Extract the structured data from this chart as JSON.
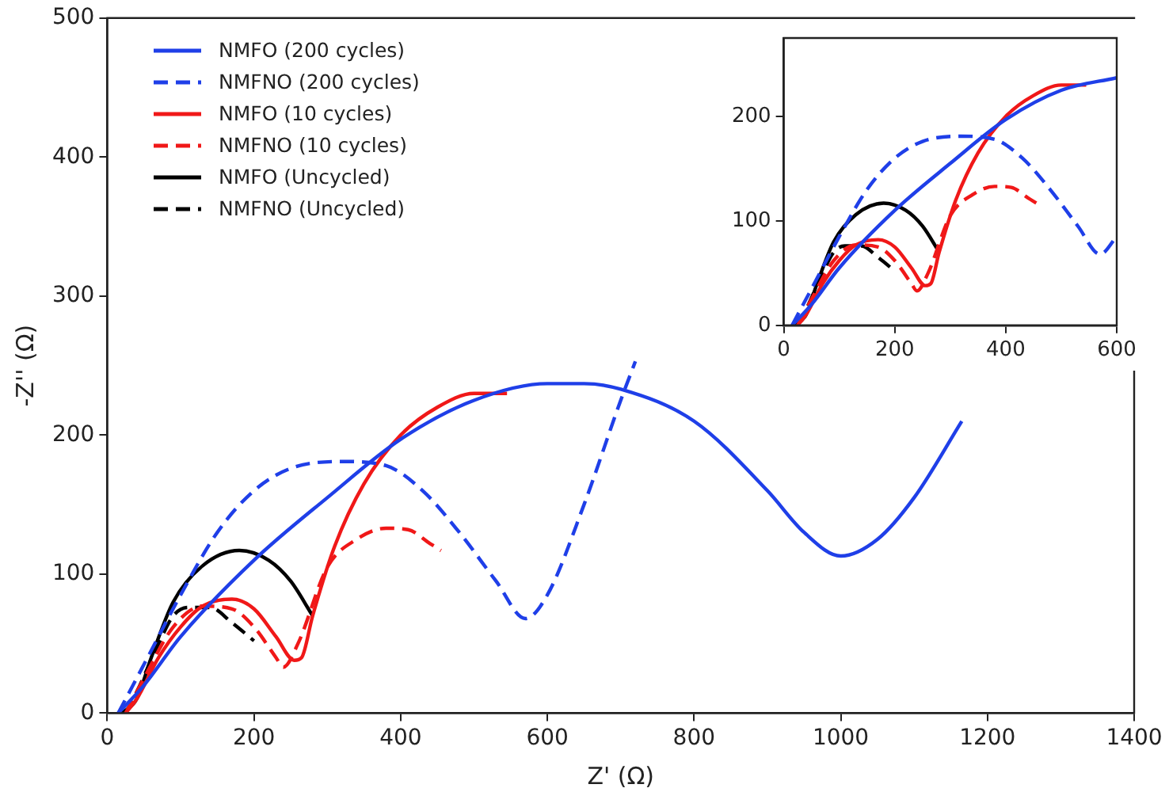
{
  "chart_data": [
    {
      "type": "line",
      "xlabel": "Z' (Ω)",
      "ylabel": "-Z'' (Ω)",
      "xlim": [
        0,
        1400
      ],
      "ylim": [
        0,
        500
      ],
      "xticks": [
        0,
        200,
        400,
        600,
        800,
        1000,
        1200,
        1400
      ],
      "yticks": [
        0,
        100,
        200,
        300,
        400,
        500
      ],
      "grid": false,
      "legend": "top left",
      "marker": "none",
      "series": [
        {
          "name": "NMFO (200 cycles)",
          "color": "#1f3fe8",
          "line_style": "solid",
          "x": [
            15,
            50,
            100,
            200,
            300,
            400,
            500,
            600,
            650,
            700,
            800,
            900,
            950,
            1000,
            1050,
            1100,
            1165
          ],
          "values": [
            0,
            20,
            55,
            110,
            155,
            197,
            225,
            237,
            237,
            233,
            210,
            160,
            130,
            113,
            125,
            155,
            210
          ]
        },
        {
          "name": "NMFNO (200 cycles)",
          "color": "#1f3fe8",
          "line_style": "dashed",
          "x": [
            15,
            50,
            100,
            150,
            200,
            250,
            320,
            380,
            430,
            480,
            530,
            570,
            600,
            650,
            700,
            720
          ],
          "values": [
            0,
            35,
            85,
            130,
            160,
            176,
            181,
            178,
            160,
            130,
            95,
            68,
            85,
            150,
            225,
            253
          ]
        },
        {
          "name": "NMFO (10 cycles)",
          "color": "#f01818",
          "line_style": "solid",
          "x": [
            25,
            40,
            70,
            100,
            130,
            170,
            200,
            230,
            255,
            265,
            280,
            310,
            350,
            400,
            450,
            500,
            545
          ],
          "values": [
            0,
            10,
            40,
            62,
            77,
            82,
            75,
            55,
            38,
            40,
            70,
            120,
            165,
            200,
            220,
            230,
            230
          ]
        },
        {
          "name": "NMFNO (10 cycles)",
          "color": "#f01818",
          "line_style": "dashed",
          "x": [
            25,
            50,
            90,
            130,
            170,
            200,
            230,
            240,
            260,
            300,
            340,
            380,
            410,
            440,
            455
          ],
          "values": [
            0,
            25,
            62,
            77,
            75,
            62,
            40,
            33,
            50,
            105,
            125,
            133,
            132,
            122,
            117
          ]
        },
        {
          "name": "NMFO (Uncycled)",
          "color": "#000000",
          "line_style": "solid",
          "x": [
            20,
            40,
            60,
            90,
            130,
            180,
            220,
            250,
            280
          ],
          "values": [
            0,
            10,
            40,
            80,
            106,
            117,
            110,
            95,
            70
          ]
        },
        {
          "name": "NMFNO (Uncycled)",
          "color": "#000000",
          "line_style": "dashed",
          "x": [
            25,
            40,
            70,
            90,
            110,
            140,
            170,
            200
          ],
          "values": [
            0,
            15,
            50,
            70,
            76,
            76,
            65,
            52
          ]
        }
      ]
    },
    {
      "type": "line",
      "xlim": [
        0,
        600
      ],
      "ylim": [
        0,
        275
      ],
      "xticks": [
        0,
        200,
        400,
        600
      ],
      "yticks": [
        0,
        100,
        200
      ],
      "grid": false,
      "legend": false,
      "marker": "none",
      "series": [
        {
          "color": "#1f3fe8",
          "line_style": "solid",
          "x": [
            15,
            50,
            100,
            200,
            300,
            400,
            500,
            600
          ],
          "values": [
            0,
            20,
            55,
            110,
            155,
            197,
            225,
            237
          ]
        },
        {
          "color": "#1f3fe8",
          "line_style": "dashed",
          "x": [
            15,
            50,
            100,
            150,
            200,
            250,
            320,
            380,
            430,
            480,
            530,
            570,
            600
          ],
          "values": [
            0,
            35,
            85,
            130,
            160,
            176,
            181,
            178,
            160,
            130,
            95,
            68,
            85
          ]
        },
        {
          "color": "#f01818",
          "line_style": "solid",
          "x": [
            25,
            40,
            70,
            100,
            130,
            170,
            200,
            230,
            255,
            265,
            280,
            310,
            350,
            400,
            450,
            500,
            545
          ],
          "values": [
            0,
            10,
            40,
            62,
            77,
            82,
            75,
            55,
            38,
            40,
            70,
            120,
            165,
            200,
            220,
            230,
            230
          ]
        },
        {
          "color": "#f01818",
          "line_style": "dashed",
          "x": [
            25,
            50,
            90,
            130,
            170,
            200,
            230,
            240,
            260,
            300,
            340,
            380,
            410,
            440,
            455
          ],
          "values": [
            0,
            25,
            62,
            77,
            75,
            62,
            40,
            33,
            50,
            105,
            125,
            133,
            132,
            122,
            117
          ]
        },
        {
          "color": "#000000",
          "line_style": "solid",
          "x": [
            20,
            40,
            60,
            90,
            130,
            180,
            220,
            250,
            280
          ],
          "values": [
            0,
            10,
            40,
            80,
            106,
            117,
            110,
            95,
            70
          ]
        },
        {
          "color": "#000000",
          "line_style": "dashed",
          "x": [
            25,
            40,
            70,
            90,
            110,
            140,
            170,
            200
          ],
          "values": [
            0,
            15,
            50,
            70,
            76,
            76,
            65,
            52
          ]
        }
      ]
    }
  ]
}
